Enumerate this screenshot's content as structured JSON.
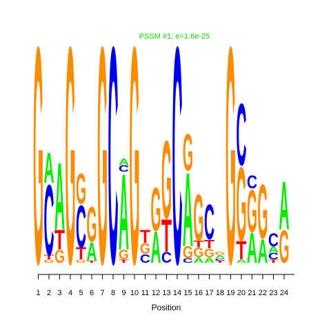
{
  "chart_data": {
    "type": "sequence-logo",
    "title": "PSSM #1; e=1.6e-25",
    "title_color": "#00dd00",
    "xlabel": "Position",
    "ylabel": "",
    "x_ticks": [
      "1",
      "2",
      "3",
      "4",
      "5",
      "6",
      "7",
      "8",
      "9",
      "10",
      "11",
      "12",
      "13",
      "14",
      "15",
      "16",
      "17",
      "18",
      "19",
      "20",
      "21",
      "22",
      "23",
      "24"
    ],
    "ylim_bits": [
      0,
      2
    ],
    "colors": {
      "A": "#00ee00",
      "C": "#0000ee",
      "G": "#ff8c00",
      "T": "#ff0000"
    },
    "columns": [
      {
        "position": 1,
        "stack": [
          {
            "letter": "G",
            "bits": 2.0
          }
        ]
      },
      {
        "position": 2,
        "stack": [
          {
            "letter": "G",
            "bits": 0.03
          },
          {
            "letter": "T",
            "bits": 0.04
          },
          {
            "letter": "C",
            "bits": 0.65
          },
          {
            "letter": "A",
            "bits": 0.28
          }
        ]
      },
      {
        "position": 3,
        "stack": [
          {
            "letter": "G",
            "bits": 0.12
          },
          {
            "letter": "T",
            "bits": 0.18
          },
          {
            "letter": "A",
            "bits": 0.62
          }
        ]
      },
      {
        "position": 4,
        "stack": [
          {
            "letter": "G",
            "bits": 2.0
          }
        ]
      },
      {
        "position": 5,
        "stack": [
          {
            "letter": "G",
            "bits": 0.03
          },
          {
            "letter": "T",
            "bits": 0.11
          },
          {
            "letter": "C",
            "bits": 0.39
          },
          {
            "letter": "G",
            "bits": 0.28
          }
        ]
      },
      {
        "position": 6,
        "stack": [
          {
            "letter": "T",
            "bits": 0.02
          },
          {
            "letter": "A",
            "bits": 0.17
          },
          {
            "letter": "G",
            "bits": 0.32
          }
        ]
      },
      {
        "position": 7,
        "stack": [
          {
            "letter": "G",
            "bits": 2.0
          }
        ]
      },
      {
        "position": 8,
        "stack": [
          {
            "letter": "C",
            "bits": 2.0
          }
        ]
      },
      {
        "position": 9,
        "stack": [
          {
            "letter": "T",
            "bits": 0.03
          },
          {
            "letter": "G",
            "bits": 0.09
          },
          {
            "letter": "A",
            "bits": 0.7
          },
          {
            "letter": "C",
            "bits": 0.06
          },
          {
            "letter": "A",
            "bits": 0.06
          }
        ]
      },
      {
        "position": 10,
        "stack": [
          {
            "letter": "G",
            "bits": 2.0
          }
        ]
      },
      {
        "position": 11,
        "stack": [
          {
            "letter": "C",
            "bits": 0.08
          },
          {
            "letter": "G",
            "bits": 0.1
          },
          {
            "letter": "T",
            "bits": 0.12
          }
        ]
      },
      {
        "position": 12,
        "stack": [
          {
            "letter": "A",
            "bits": 0.29
          },
          {
            "letter": "G",
            "bits": 0.4
          }
        ]
      },
      {
        "position": 13,
        "stack": [
          {
            "letter": "C",
            "bits": 0.1
          },
          {
            "letter": "T",
            "bits": 0.3
          },
          {
            "letter": "G",
            "bits": 0.72
          }
        ]
      },
      {
        "position": 14,
        "stack": [
          {
            "letter": "C",
            "bits": 2.0
          }
        ]
      },
      {
        "position": 15,
        "stack": [
          {
            "letter": "C",
            "bits": 0.04
          },
          {
            "letter": "G",
            "bits": 0.11
          },
          {
            "letter": "A",
            "bits": 0.68
          },
          {
            "letter": "G",
            "bits": 0.34
          }
        ]
      },
      {
        "position": 16,
        "stack": [
          {
            "letter": "A",
            "bits": 0.05
          },
          {
            "letter": "G",
            "bits": 0.09
          },
          {
            "letter": "T",
            "bits": 0.06
          },
          {
            "letter": "G",
            "bits": 0.43
          }
        ]
      },
      {
        "position": 17,
        "stack": [
          {
            "letter": "A",
            "bits": 0.05
          },
          {
            "letter": "G",
            "bits": 0.08
          },
          {
            "letter": "T",
            "bits": 0.08
          },
          {
            "letter": "C",
            "bits": 0.32
          }
        ]
      },
      {
        "position": 18,
        "stack": [
          {
            "letter": "T",
            "bits": 0.02
          },
          {
            "letter": "C",
            "bits": 0.02
          },
          {
            "letter": "A",
            "bits": 0.03
          },
          {
            "letter": "G",
            "bits": 0.03
          }
        ]
      },
      {
        "position": 19,
        "stack": [
          {
            "letter": "G",
            "bits": 2.0
          }
        ]
      },
      {
        "position": 20,
        "stack": [
          {
            "letter": "A",
            "bits": 0.03
          },
          {
            "letter": "T",
            "bits": 0.17
          },
          {
            "letter": "G",
            "bits": 0.68
          },
          {
            "letter": "C",
            "bits": 0.57
          }
        ]
      },
      {
        "position": 21,
        "stack": [
          {
            "letter": "A",
            "bits": 0.28
          },
          {
            "letter": "G",
            "bits": 0.39
          },
          {
            "letter": "C",
            "bits": 0.12
          }
        ]
      },
      {
        "position": 22,
        "stack": [
          {
            "letter": "A",
            "bits": 0.22
          },
          {
            "letter": "G",
            "bits": 0.5
          }
        ]
      },
      {
        "position": 23,
        "stack": [
          {
            "letter": "T",
            "bits": 0.03
          },
          {
            "letter": "C",
            "bits": 0.06
          },
          {
            "letter": "A",
            "bits": 0.06
          },
          {
            "letter": "C",
            "bits": 0.12
          }
        ]
      },
      {
        "position": 24,
        "stack": [
          {
            "letter": "G",
            "bits": 0.3
          },
          {
            "letter": "A",
            "bits": 0.44
          }
        ]
      }
    ]
  }
}
